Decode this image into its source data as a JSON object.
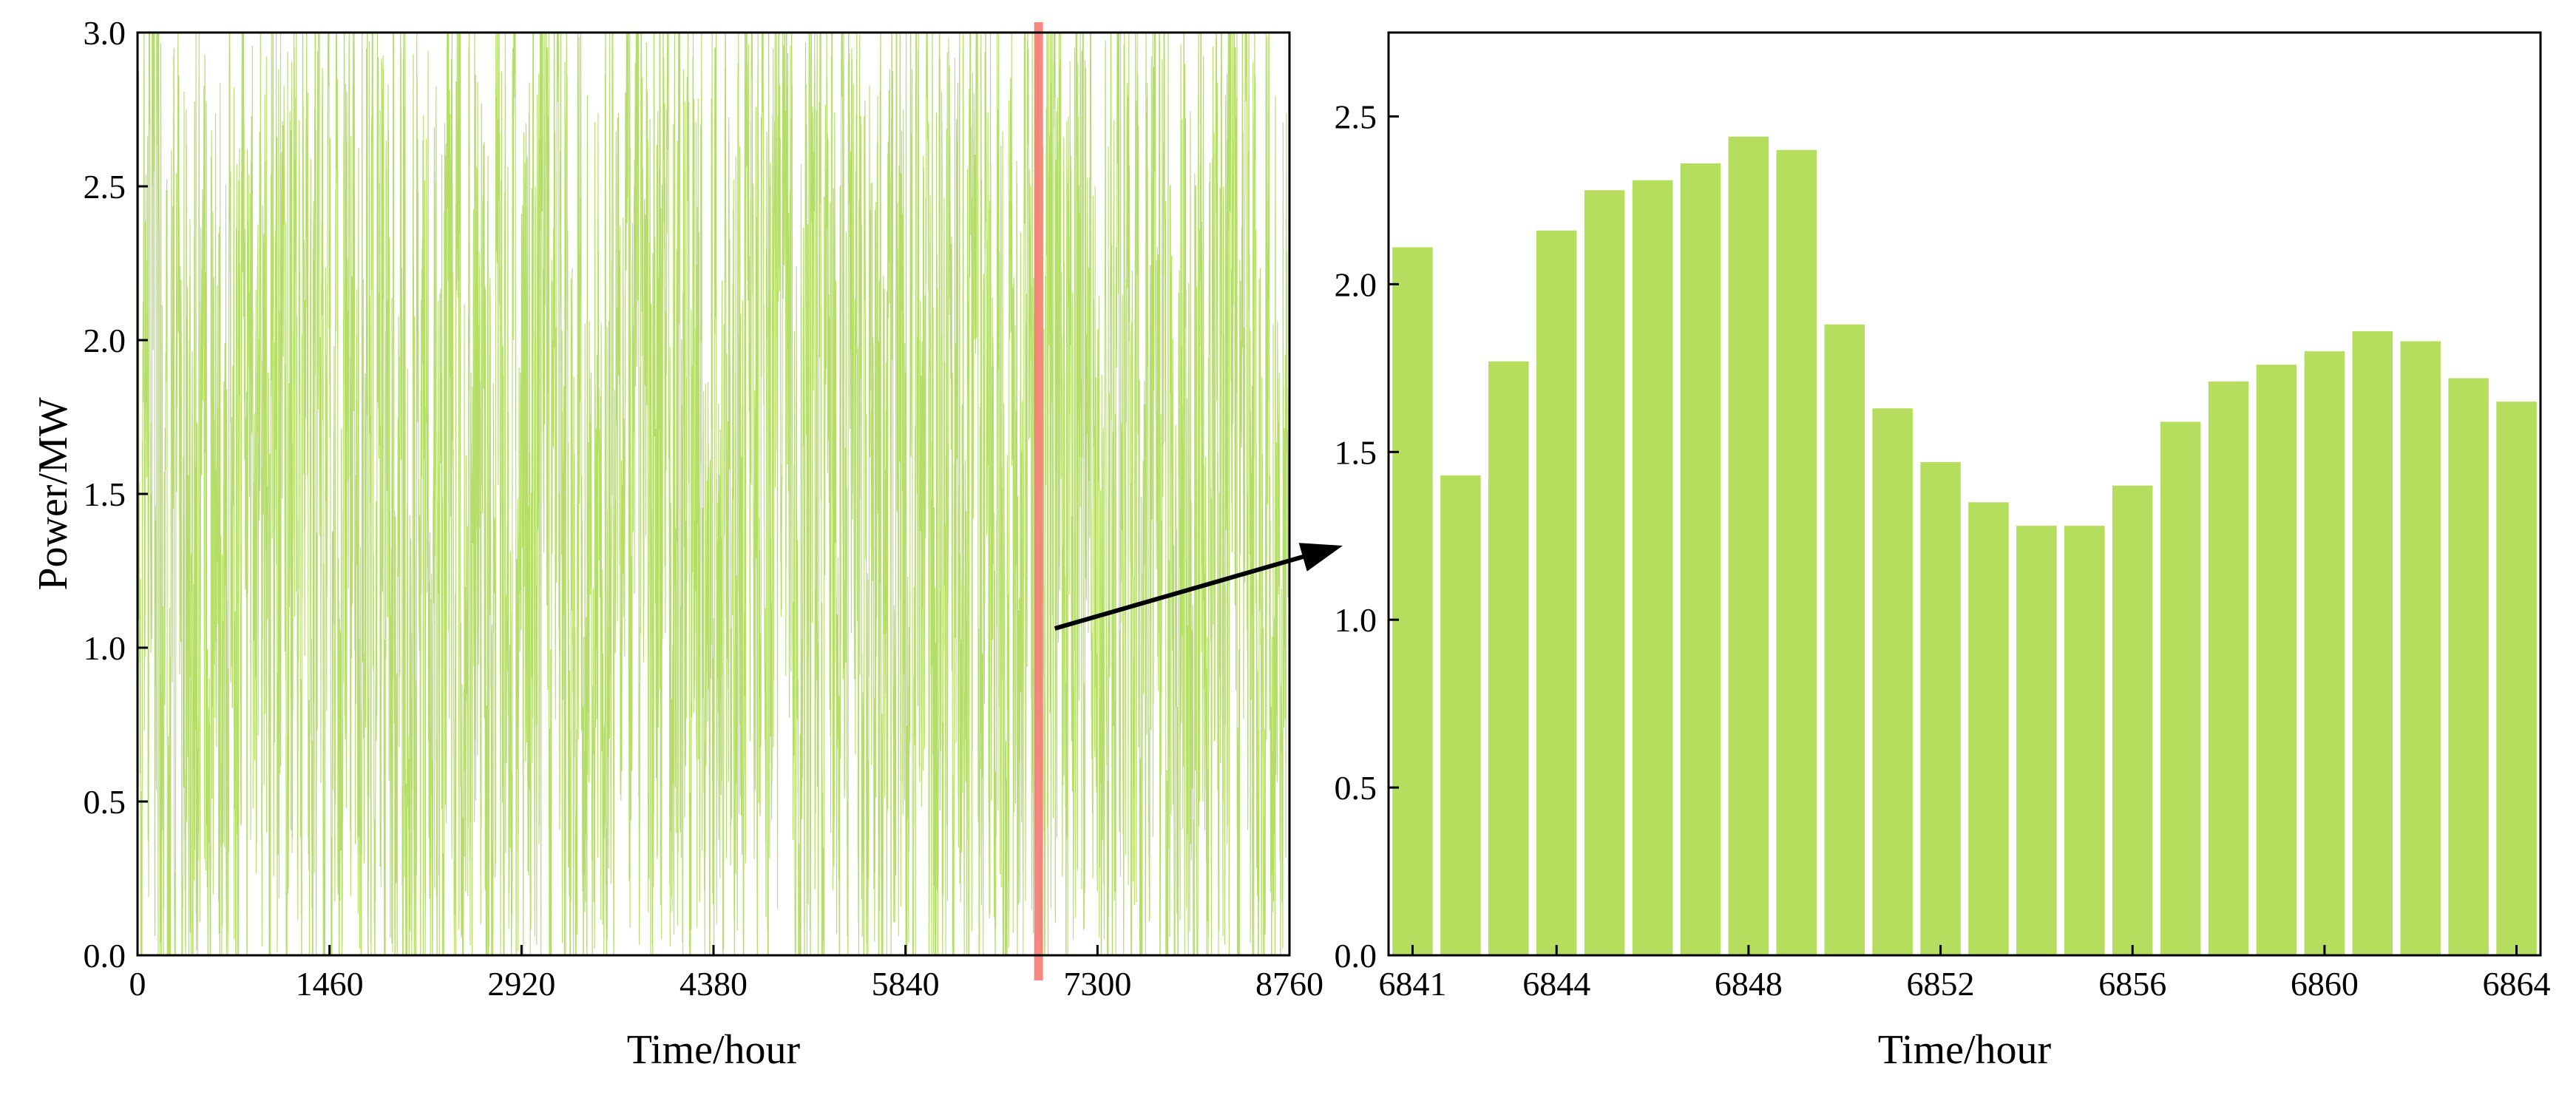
{
  "colors": {
    "series": "#a8d84e",
    "bar": "#b5dd5e",
    "highlight": "#f47c74",
    "arrow": "#000000"
  },
  "chart_data": [
    {
      "type": "line",
      "xlabel": "Time/hour",
      "ylabel": "Power/MW",
      "xlim": [
        0,
        8760
      ],
      "ylim": [
        0,
        3.0
      ],
      "xticks": [
        "0",
        "1460",
        "2920",
        "4380",
        "5840",
        "7300",
        "8760"
      ],
      "yticks": [
        "0.0",
        "0.5",
        "1.0",
        "1.5",
        "2.0",
        "2.5",
        "3.0"
      ],
      "series": [
        {
          "x_range": [
            0,
            8760
          ],
          "step": 1,
          "values_summary": "hourly wind power fluctuating between 0.0 and 3.0 MW across the full year"
        }
      ],
      "highlight_x": 6852,
      "grid": false
    },
    {
      "type": "bar",
      "xlabel": "Time/hour",
      "ylabel": "",
      "categories": [
        6841,
        6842,
        6843,
        6844,
        6845,
        6846,
        6847,
        6848,
        6849,
        6850,
        6851,
        6852,
        6853,
        6854,
        6855,
        6856,
        6857,
        6858,
        6859,
        6860,
        6861,
        6862,
        6863,
        6864
      ],
      "values": [
        2.11,
        1.43,
        1.77,
        2.16,
        2.28,
        2.31,
        2.36,
        2.44,
        2.4,
        1.88,
        1.63,
        1.47,
        1.35,
        1.28,
        1.28,
        1.4,
        1.59,
        1.71,
        1.76,
        1.8,
        1.86,
        1.83,
        1.72,
        1.65
      ],
      "xticks": [
        "6841",
        "6844",
        "6848",
        "6852",
        "6856",
        "6860",
        "6864"
      ],
      "yticks": [
        "0.0",
        "0.5",
        "1.0",
        "1.5",
        "2.0",
        "2.5"
      ],
      "ylim": [
        0,
        2.75
      ],
      "grid": false
    }
  ]
}
